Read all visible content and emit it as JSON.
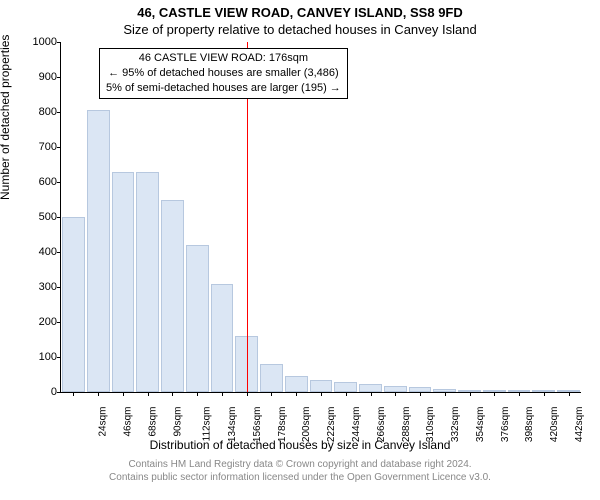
{
  "title_line1": "46, CASTLE VIEW ROAD, CANVEY ISLAND, SS8 9FD",
  "title_line2": "Size of property relative to detached houses in Canvey Island",
  "ylabel": "Number of detached properties",
  "xlabel": "Distribution of detached houses by size in Canvey Island",
  "footer_line1": "Contains HM Land Registry data © Crown copyright and database right 2024.",
  "footer_line2": "Contains public sector information licensed under the Open Government Licence v3.0.",
  "chart": {
    "type": "bar-histogram",
    "ylim": [
      0,
      1000
    ],
    "ytick_step": 100,
    "x_start": 24,
    "x_step": 22,
    "x_count": 21,
    "x_unit": "sqm",
    "values": [
      500,
      805,
      630,
      630,
      550,
      420,
      310,
      160,
      80,
      45,
      35,
      28,
      22,
      18,
      14,
      10,
      7,
      5,
      0,
      3,
      2
    ],
    "bar_fill": "#dbe6f4",
    "bar_stroke": "#b7c8df",
    "background": "#ffffff",
    "vline_x_label": "178sqm",
    "vline_color": "#ff0000",
    "axis_fontsize": 11,
    "label_fontsize": 12,
    "title_fontsize": 13
  },
  "annotation": {
    "line1": "46 CASTLE VIEW ROAD: 176sqm",
    "line2": "← 95% of detached houses are smaller (3,486)",
    "line3": "5% of semi-detached houses are larger (195) →"
  }
}
